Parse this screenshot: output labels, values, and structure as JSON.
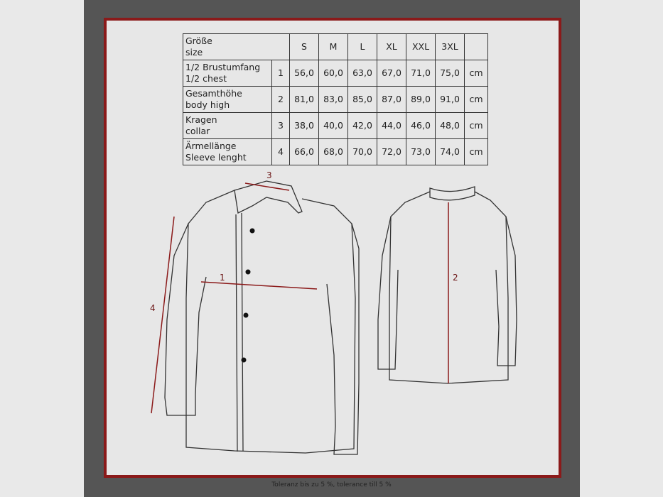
{
  "table": {
    "header": {
      "label": "Größe\nsize",
      "sizes": [
        "S",
        "M",
        "L",
        "XL",
        "XXL",
        "3XL"
      ]
    },
    "rows": [
      {
        "label": "1/2 Brustumfang\n1/2 chest",
        "num": "1",
        "values": [
          "56,0",
          "60,0",
          "63,0",
          "67,0",
          "71,0",
          "75,0"
        ],
        "unit": "cm"
      },
      {
        "label": "Gesamthöhe\nbody high",
        "num": "2",
        "values": [
          "81,0",
          "83,0",
          "85,0",
          "87,0",
          "89,0",
          "91,0"
        ],
        "unit": "cm"
      },
      {
        "label": "Kragen\ncollar",
        "num": "3",
        "values": [
          "38,0",
          "40,0",
          "42,0",
          "44,0",
          "46,0",
          "48,0"
        ],
        "unit": "cm"
      },
      {
        "label": "Ärmellänge\nSleeve lenght",
        "num": "4",
        "values": [
          "66,0",
          "68,0",
          "70,0",
          "72,0",
          "73,0",
          "74,0"
        ],
        "unit": "cm"
      }
    ]
  },
  "diagram": {
    "labels": {
      "chest": "1",
      "body": "2",
      "collar": "3",
      "sleeve": "4"
    },
    "measure_color": "#8b1a1a"
  },
  "footer": "Toleranz bis zu 5 %, tolerance till 5 %",
  "colors": {
    "panel": "#555555",
    "frame_border": "#8b1a1a",
    "frame_fill": "#e7e7e7"
  }
}
